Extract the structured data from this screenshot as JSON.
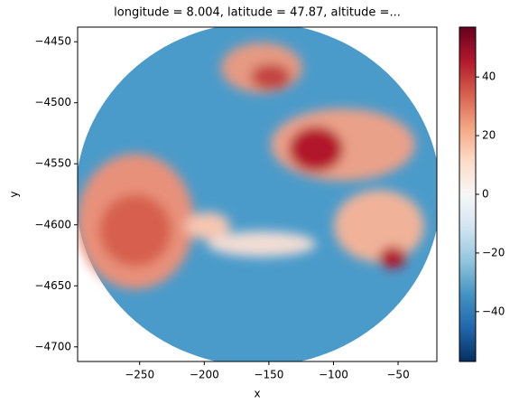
{
  "chart_data": {
    "type": "heatmap",
    "title": "longitude = 8.004, latitude = 47.87, altitude =...",
    "x_label": "x",
    "y_label": "y",
    "xlim": [
      -298,
      -20
    ],
    "xticks": [
      {
        "value": -250,
        "label": "−250"
      },
      {
        "value": -200,
        "label": "−200"
      },
      {
        "value": -150,
        "label": "−150"
      },
      {
        "value": -100,
        "label": "−100"
      },
      {
        "value": -50,
        "label": "−50"
      }
    ],
    "ylim": [
      -4712,
      -4438
    ],
    "yticks": [
      {
        "value": -4450,
        "label": "−4450"
      },
      {
        "value": -4500,
        "label": "−4500"
      },
      {
        "value": -4550,
        "label": "−4550"
      },
      {
        "value": -4600,
        "label": "−4600"
      },
      {
        "value": -4650,
        "label": "−4650"
      },
      {
        "value": -4700,
        "label": "−4700"
      }
    ],
    "clim": [
      -57,
      57
    ],
    "cticks": [
      {
        "value": -40,
        "label": "−40"
      },
      {
        "value": -20,
        "label": "−20"
      },
      0,
      20,
      40
    ],
    "colormap": "RdBu_r"
  }
}
